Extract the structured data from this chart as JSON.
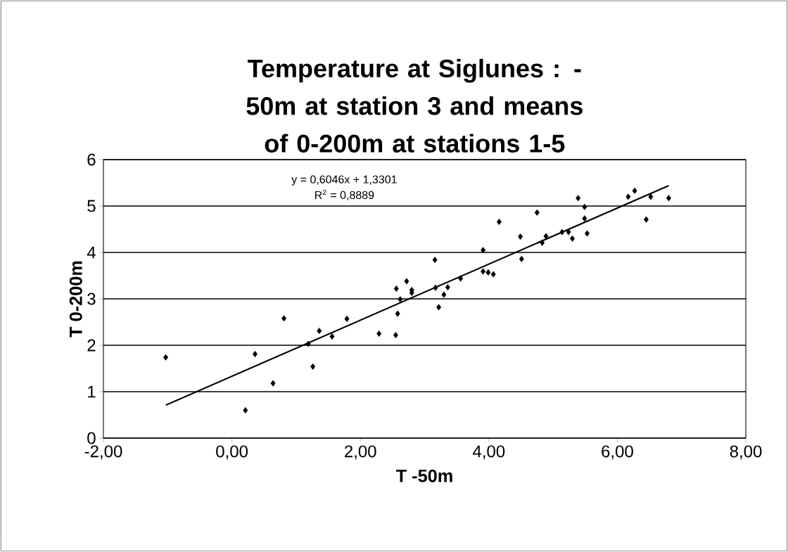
{
  "chart_data": {
    "type": "scatter",
    "title": "Temperature at Siglunes  : -50m at station 3 and means of 0-200m at stations 1-5",
    "xlabel": "T -50m",
    "ylabel": "T 0-200m",
    "annotations": [
      "y = 0,6046x + 1,3301",
      "R$^{2}$ = 0,8889"
    ],
    "series": [
      {
        "color": "#000000",
        "marker": "diamond",
        "x": [
          -1.03,
          0.21,
          0.36,
          0.64,
          0.81,
          1.19,
          1.26,
          1.36,
          1.56,
          1.79,
          2.29,
          2.55,
          2.58,
          2.56,
          2.62,
          2.72,
          2.8,
          2.8,
          3.16,
          3.17,
          3.22,
          3.3,
          3.36,
          3.56,
          3.91,
          3.91,
          3.99,
          4.07,
          4.16,
          4.49,
          4.51,
          4.75,
          4.83,
          4.89,
          5.14,
          5.24,
          5.3,
          5.39,
          5.49,
          5.49,
          5.53,
          6.17,
          6.27,
          6.45,
          6.52,
          6.8
        ],
        "values": [
          1.74,
          0.6,
          1.81,
          1.18,
          2.58,
          2.03,
          1.54,
          2.31,
          2.19,
          2.57,
          2.25,
          2.22,
          2.68,
          3.22,
          2.99,
          3.38,
          3.19,
          3.13,
          3.84,
          3.24,
          2.82,
          3.09,
          3.25,
          3.44,
          4.05,
          3.59,
          3.57,
          3.53,
          4.66,
          4.34,
          3.86,
          4.86,
          4.21,
          4.35,
          4.44,
          4.44,
          4.3,
          5.17,
          4.98,
          4.73,
          4.41,
          5.2,
          5.33,
          4.71,
          5.2,
          5.17
        ]
      },
      {
        "type": "line",
        "color": "#000000",
        "marker": "none",
        "line_style": "solid",
        "x": [
          -1.03,
          6.8
        ],
        "values": [
          0.71,
          5.44
        ]
      }
    ],
    "xlim": [
      -2,
      8
    ],
    "ylim": [
      0,
      6
    ],
    "xticks": [
      {
        "value": -2,
        "label": "-2,00"
      },
      {
        "value": 0,
        "label": "0,00"
      },
      {
        "value": 2,
        "label": "2,00"
      },
      {
        "value": 4,
        "label": "4,00"
      },
      {
        "value": 6,
        "label": "6,00"
      },
      {
        "value": 8,
        "label": "8,00"
      }
    ],
    "yticks": [
      0,
      1,
      2,
      3,
      4,
      5,
      6
    ],
    "grid": "y"
  }
}
